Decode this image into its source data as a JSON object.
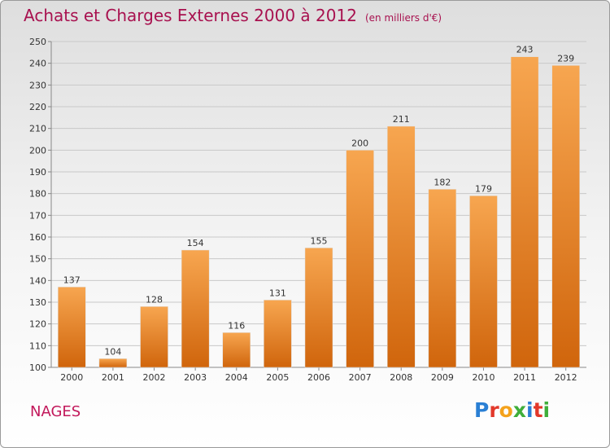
{
  "header": {
    "title": "Achats et Charges Externes 2000 à 2012",
    "subtitle": "(en milliers d'€)"
  },
  "footer": {
    "commune": "NAGES",
    "brand_letters": [
      "P",
      "r",
      "o",
      "x",
      "i",
      "t",
      "i"
    ]
  },
  "colors": {
    "bar_light": "#f6a14a",
    "bar_dark": "#d46a10",
    "title": "#a8114f",
    "grid": "#c8c8c8"
  },
  "chart_data": {
    "type": "bar",
    "title": "Achats et Charges Externes 2000 à 2012",
    "subtitle": "(en milliers d'€)",
    "categories": [
      "2000",
      "2001",
      "2002",
      "2003",
      "2004",
      "2005",
      "2006",
      "2007",
      "2008",
      "2009",
      "2010",
      "2011",
      "2012"
    ],
    "values": [
      137,
      104,
      128,
      154,
      116,
      131,
      155,
      200,
      211,
      182,
      179,
      243,
      239
    ],
    "ylim": [
      100,
      250
    ],
    "yticks": [
      100,
      110,
      120,
      130,
      140,
      150,
      160,
      170,
      180,
      190,
      200,
      210,
      220,
      230,
      240,
      250
    ],
    "grid": true,
    "legend": "none"
  }
}
